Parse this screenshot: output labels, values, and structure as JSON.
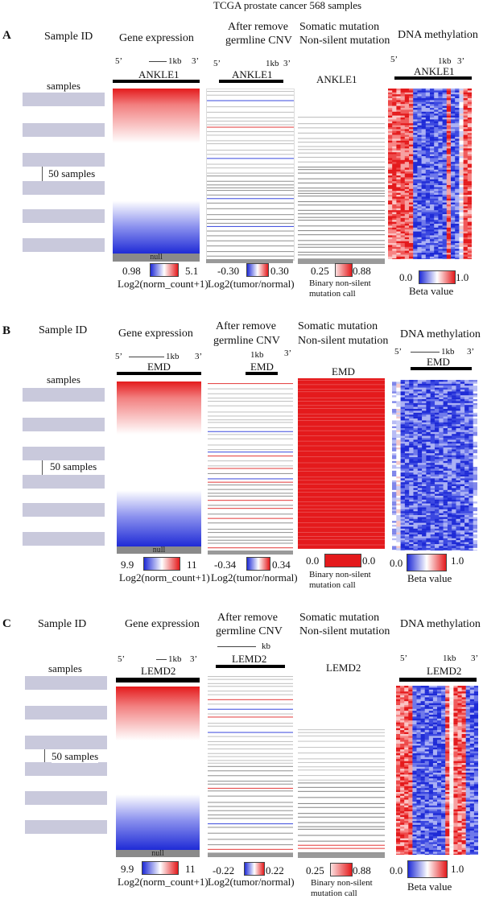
{
  "figure_title": "TCGA prostate cancer 568 samples",
  "column_headers": {
    "sample_id": "Sample ID",
    "expression": "Gene expression",
    "cnv": [
      "After remove",
      "germline CNV"
    ],
    "mutation": [
      "Somatic mutation",
      "Non-silent mutation"
    ],
    "methylation": "DNA methylation"
  },
  "common": {
    "samples": "samples",
    "fifty": "50 samples",
    "five_prime": "5’",
    "three_prime": "3’",
    "kb": "1kb",
    "kb_c_cnv": "kb",
    "null": "null",
    "expr_unit": "Log2(norm_count+1)",
    "cnv_unit": "Log2(tumor/normal)",
    "mut_unit": [
      "Binary non-silent",
      "mutation call"
    ],
    "meth_unit": "Beta value"
  },
  "panels": [
    {
      "letter": "A",
      "gene": "ANKLE1",
      "expr": [
        "0.98",
        "5.1"
      ],
      "cnv": [
        "-0.30",
        "0.30"
      ],
      "mut": [
        "0.25",
        "0.88"
      ],
      "meth": [
        "0.0",
        "1.0"
      ]
    },
    {
      "letter": "B",
      "gene": "EMD",
      "expr": [
        "9.9",
        "11"
      ],
      "cnv": [
        "-0.34",
        "0.34"
      ],
      "mut": [
        "0.0",
        "0.0"
      ],
      "meth": [
        "0.0",
        "1.0"
      ]
    },
    {
      "letter": "C",
      "gene": "LEMD2",
      "expr": [
        "9.9",
        "11"
      ],
      "cnv": [
        "-0.22",
        "0.22"
      ],
      "mut": [
        "0.25",
        "0.88"
      ],
      "meth": [
        "0.0",
        "1.0"
      ]
    }
  ],
  "colors": {
    "red": "#e41a1c",
    "blue": "#1f2bd6",
    "band": "#c9c9dc",
    "grey": "#8a8a8a"
  }
}
